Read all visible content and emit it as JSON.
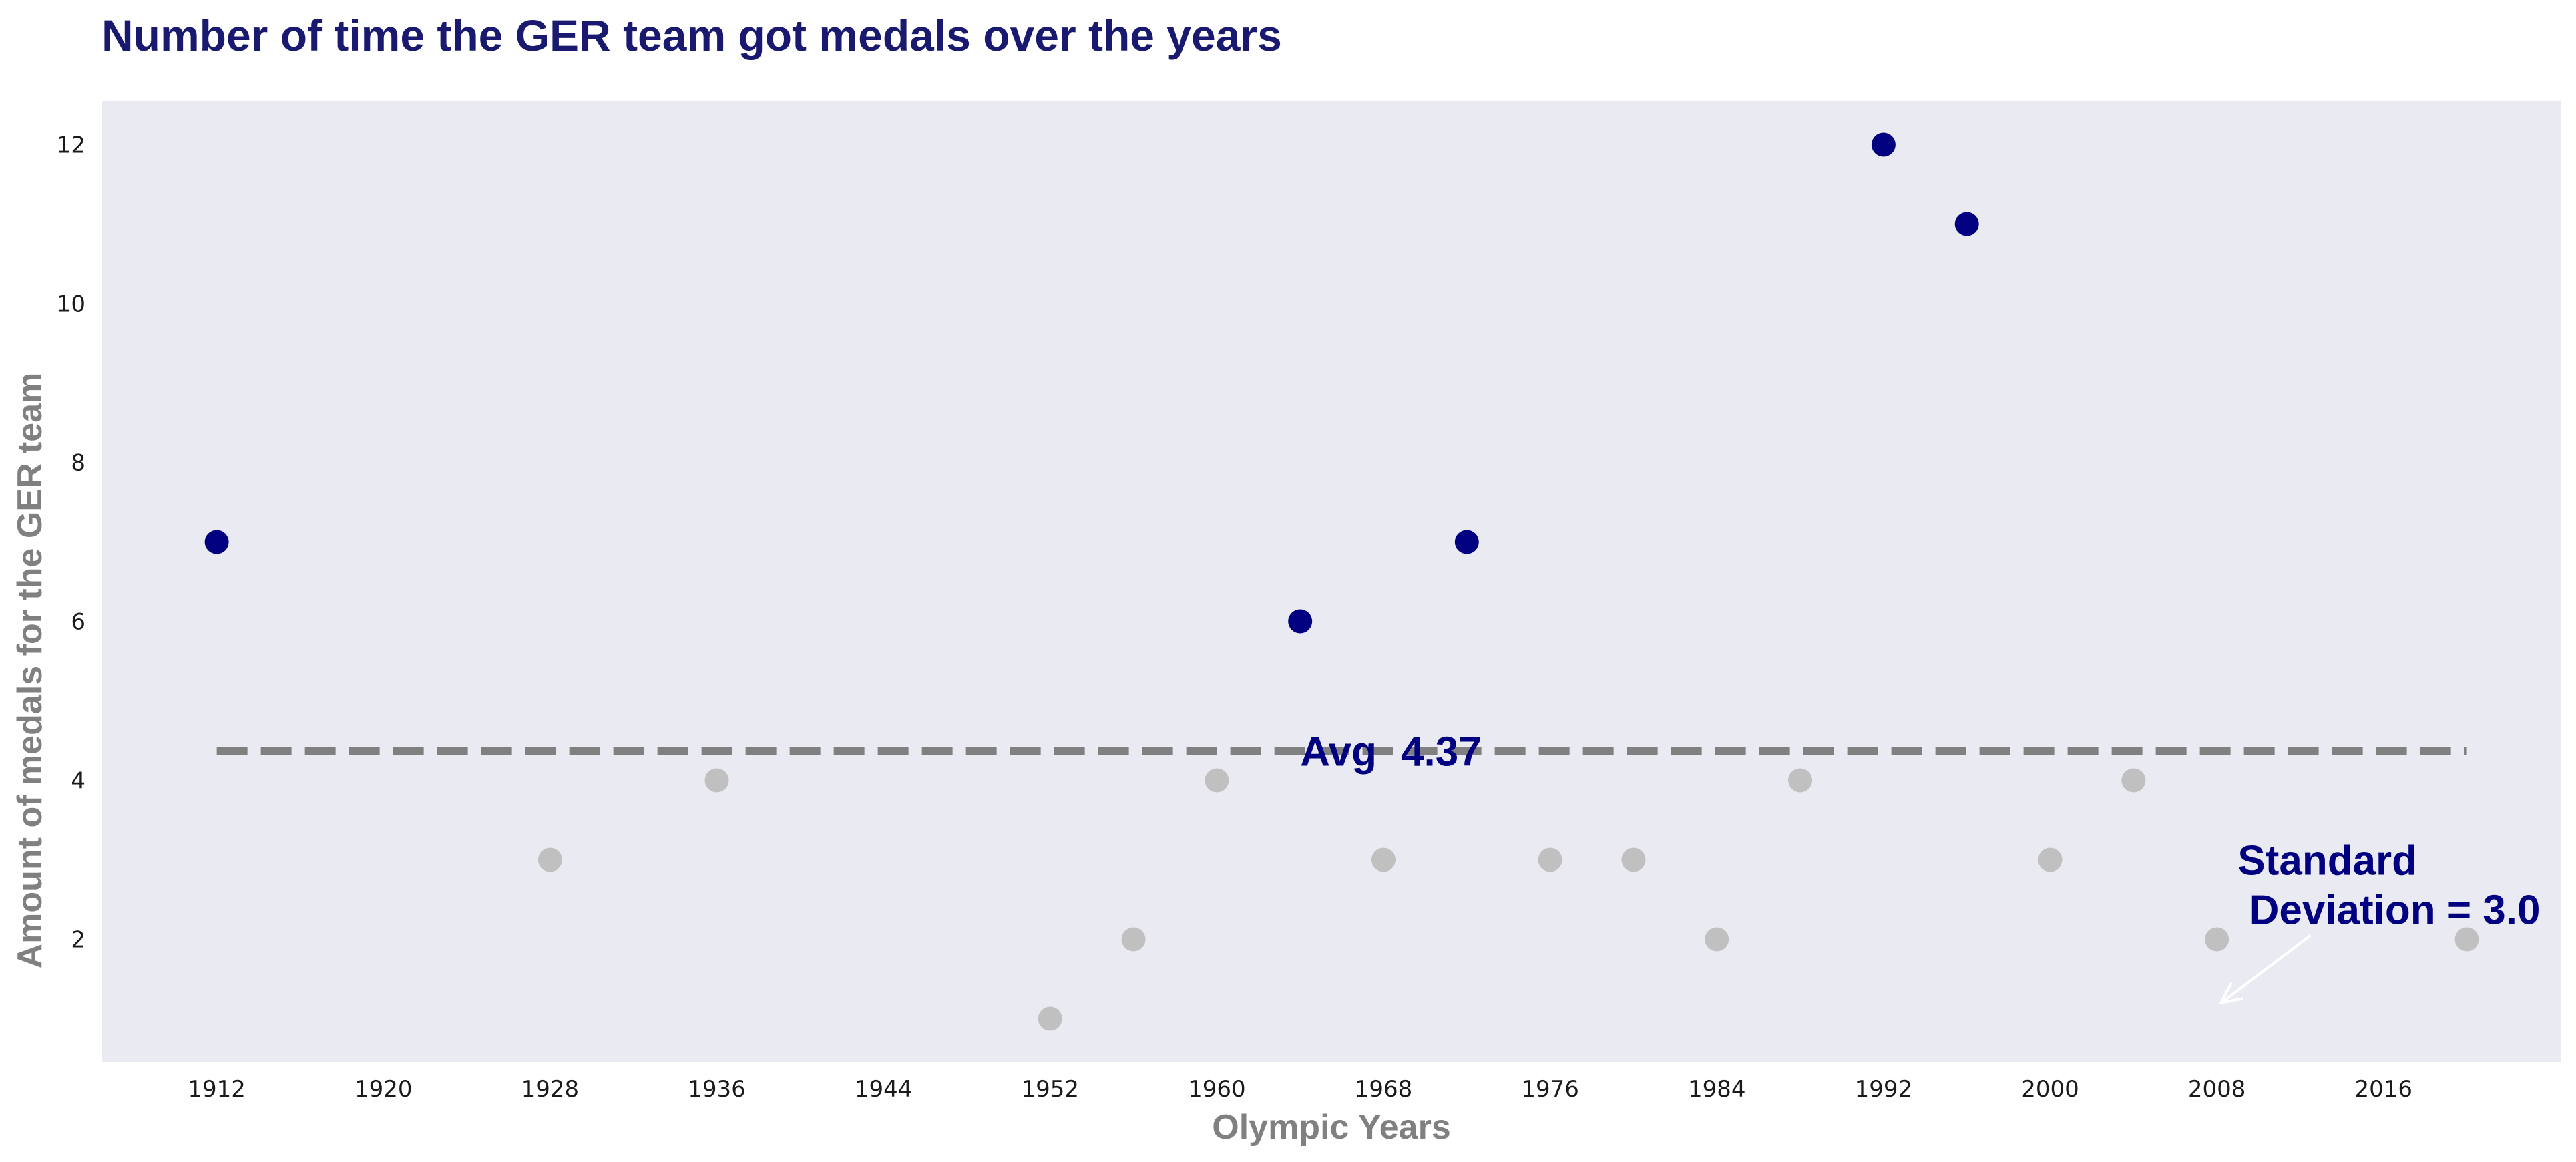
{
  "chart_data": {
    "type": "scatter",
    "title": "Number of time the GER team got medals over the years",
    "xlabel": "Olympic Years",
    "ylabel": "Amount of medals for the GER team",
    "xlim": [
      1906.5,
      2024.5
    ],
    "ylim": [
      0.45,
      12.55
    ],
    "xticks": [
      1912,
      1920,
      1928,
      1936,
      1944,
      1952,
      1960,
      1968,
      1976,
      1984,
      1992,
      2000,
      2008,
      2016
    ],
    "yticks": [
      2,
      4,
      6,
      8,
      10,
      12
    ],
    "grid": false,
    "colors": {
      "plot_background": "#eaeaf2",
      "above_average": "#000080",
      "below_average": "#c0c0c0",
      "average_line": "#808080",
      "annotation_arrow": "#ffffff"
    },
    "points": [
      {
        "x": 1912,
        "y": 7
      },
      {
        "x": 1928,
        "y": 3
      },
      {
        "x": 1936,
        "y": 4
      },
      {
        "x": 1952,
        "y": 1
      },
      {
        "x": 1956,
        "y": 2
      },
      {
        "x": 1960,
        "y": 4
      },
      {
        "x": 1964,
        "y": 6
      },
      {
        "x": 1968,
        "y": 3
      },
      {
        "x": 1972,
        "y": 7
      },
      {
        "x": 1976,
        "y": 3
      },
      {
        "x": 1980,
        "y": 3
      },
      {
        "x": 1984,
        "y": 2
      },
      {
        "x": 1988,
        "y": 4
      },
      {
        "x": 1992,
        "y": 12
      },
      {
        "x": 1996,
        "y": 11
      },
      {
        "x": 2000,
        "y": 3
      },
      {
        "x": 2004,
        "y": 4
      },
      {
        "x": 2008,
        "y": 2
      },
      {
        "x": 2020,
        "y": 2
      }
    ],
    "average": {
      "value": 4.37,
      "x_range": [
        1912,
        2020
      ],
      "label_prefix": "Avg",
      "label_value": "4.37",
      "label_at": {
        "x": 1964,
        "y": 4.37
      }
    },
    "std_annotation": {
      "lines": [
        "Standard",
        " Deviation = 3.0"
      ],
      "text_at": {
        "x": 2009,
        "y": 3.0
      },
      "arrow_from": {
        "x": 2012.5,
        "y": 2.0
      },
      "arrow_to": {
        "x": 2008.2,
        "y": 1.2
      }
    }
  }
}
